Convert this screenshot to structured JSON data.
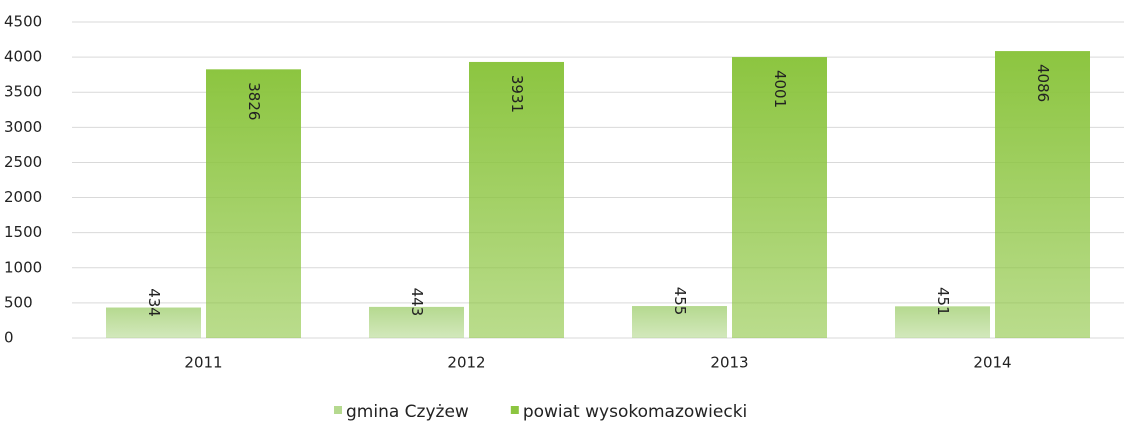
{
  "chart_data": {
    "type": "bar",
    "categories": [
      "2011",
      "2012",
      "2013",
      "2014"
    ],
    "series": [
      {
        "name": "gmina Czyżew",
        "color": "#b5d98f",
        "values": [
          434,
          443,
          455,
          451
        ]
      },
      {
        "name": "powiat wysokomazowiecki",
        "color": "#8cc540",
        "values": [
          3826,
          3931,
          4001,
          4086
        ]
      }
    ],
    "ylim": [
      0,
      4500
    ],
    "yticks": [
      0,
      500,
      1000,
      1500,
      2000,
      2500,
      3000,
      3500,
      4000,
      4500
    ],
    "grid": true,
    "legend": "bottom"
  }
}
